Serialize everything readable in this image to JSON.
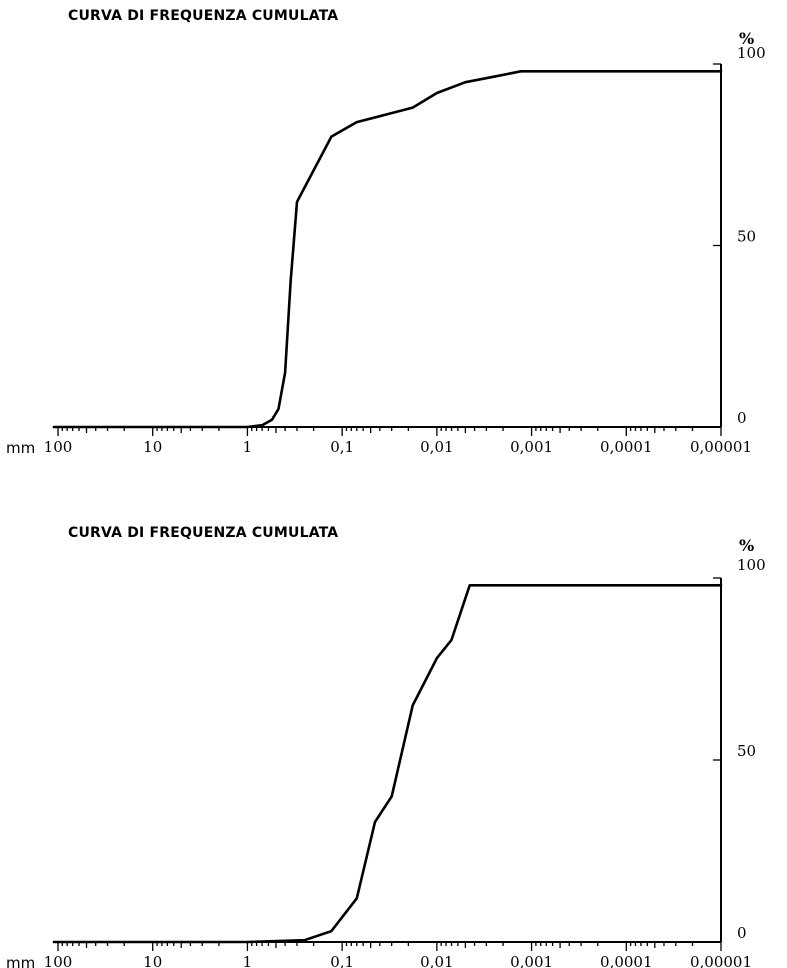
{
  "chart_data": [
    {
      "type": "line",
      "title": "CURVA DI FREQUENZA CUMULATA",
      "xlabel": "mm",
      "ylabel": "%",
      "x_scale": "log",
      "x_direction": "descending",
      "xlim": [
        100,
        1e-05
      ],
      "ylim": [
        0,
        100
      ],
      "x_tick_labels": [
        "100",
        "10",
        "1",
        "0,1",
        "0,01",
        "0,001",
        "0,0001",
        "0,00001"
      ],
      "y_tick_labels": [
        "0",
        "50",
        "100"
      ],
      "series": [
        {
          "x": [
            130,
            10,
            1,
            0.7,
            0.55,
            0.47,
            0.4,
            0.35,
            0.3,
            0.13,
            0.07,
            0.035,
            0.018,
            0.01,
            0.005,
            0.0025,
            0.0013,
            1e-05
          ],
          "y": [
            0,
            0,
            0,
            0.5,
            2,
            5,
            15,
            40,
            62,
            80,
            84,
            86,
            88,
            92,
            95,
            96.5,
            98,
            98
          ]
        }
      ]
    },
    {
      "type": "line",
      "title": "CURVA DI FREQUENZA CUMULATA",
      "xlabel": "mm",
      "ylabel": "%",
      "x_scale": "log",
      "x_direction": "descending",
      "xlim": [
        100,
        1e-05
      ],
      "ylim": [
        0,
        100
      ],
      "x_tick_labels": [
        "100",
        "10",
        "1",
        "0,1",
        "0,01",
        "0,001",
        "0,0001",
        "0,00001"
      ],
      "y_tick_labels": [
        "0",
        "50",
        "100"
      ],
      "series": [
        {
          "x": [
            130,
            1,
            0.25,
            0.13,
            0.07,
            0.045,
            0.03,
            0.018,
            0.01,
            0.007,
            0.0045,
            0.0025,
            0.0013,
            1e-05
          ],
          "y": [
            0,
            0,
            0.5,
            3,
            12,
            33,
            40,
            65,
            78,
            83,
            98,
            98,
            98,
            98
          ]
        }
      ]
    }
  ]
}
